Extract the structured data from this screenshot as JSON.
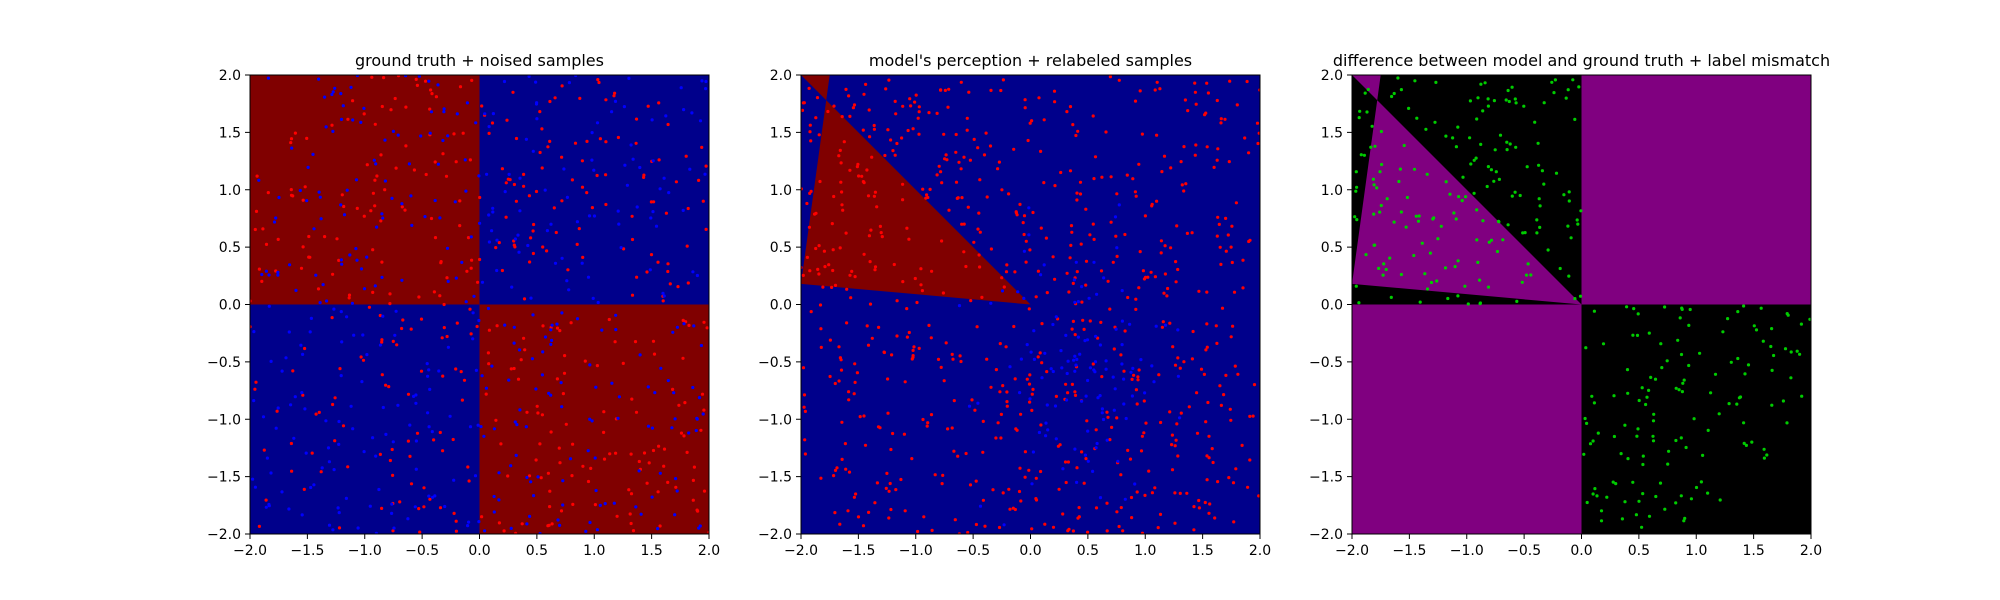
{
  "colors": {
    "red_region": "#800000",
    "blue_region": "#00008b",
    "magenta_region": "#800080",
    "black_region": "#000000",
    "red_point": "#ff0000",
    "blue_point": "#0000ff",
    "green_point": "#00cc00"
  },
  "chart_data": [
    {
      "type": "scatter",
      "title": "ground truth + noised samples",
      "xlim": [
        -2,
        2
      ],
      "ylim": [
        -2,
        2
      ],
      "xticks": [
        "−2.0",
        "−1.5",
        "−1.0",
        "−0.5",
        "0.0",
        "0.5",
        "1.0",
        "1.5",
        "2.0"
      ],
      "yticks": [
        "−2.0",
        "−1.5",
        "−1.0",
        "−0.5",
        "0.0",
        "0.5",
        "1.0",
        "1.5",
        "2.0"
      ],
      "background_regions": [
        {
          "quadrant": "x<0,y>0",
          "color": "red_region"
        },
        {
          "quadrant": "x>0,y>0",
          "color": "blue_region"
        },
        {
          "quadrant": "x<0,y<0",
          "color": "blue_region"
        },
        {
          "quadrant": "x>0,y<0",
          "color": "red_region"
        }
      ],
      "series": [
        {
          "color": "red_point",
          "distribution": "uniform",
          "n": 400
        },
        {
          "color": "blue_point",
          "distribution": "uniform",
          "n": 400
        }
      ],
      "grid": false
    },
    {
      "type": "scatter",
      "title": "model's perception + relabeled samples",
      "xlim": [
        -2,
        2
      ],
      "ylim": [
        -2,
        2
      ],
      "xticks": [
        "−2.0",
        "−1.5",
        "−1.0",
        "−0.5",
        "0.0",
        "0.5",
        "1.0",
        "1.5",
        "2.0"
      ],
      "yticks": [
        "−2.0",
        "−1.5",
        "−1.0",
        "−0.5",
        "0.0",
        "0.5",
        "1.0",
        "1.5",
        "2.0"
      ],
      "background": "blue_region",
      "background_regions": [
        {
          "polygon": [
            [
              -2,
              0.18
            ],
            [
              0,
              0
            ],
            [
              -2,
              2.0
            ],
            [
              -1.75,
              2.0
            ]
          ],
          "color": "red_region"
        }
      ],
      "series": [
        {
          "color": "red_point",
          "distribution": "uniform",
          "n": 700
        },
        {
          "color": "blue_point",
          "distribution": "cluster",
          "center": [
            0.4,
            -0.6
          ],
          "n": 120
        }
      ],
      "grid": false
    },
    {
      "type": "scatter",
      "title": "difference between model and ground truth + label mismatch",
      "xlim": [
        -2,
        2
      ],
      "ylim": [
        -2,
        2
      ],
      "xticks": [
        "−2.0",
        "−1.5",
        "−1.0",
        "−0.5",
        "0.0",
        "0.5",
        "1.0",
        "1.5",
        "2.0"
      ],
      "yticks": [
        "−2.0",
        "−1.5",
        "−1.0",
        "−0.5",
        "0.0",
        "0.5",
        "1.0",
        "1.5",
        "2.0"
      ],
      "background": "black_region",
      "background_regions": [
        {
          "quadrant": "x>0,y>0",
          "color": "magenta_region"
        },
        {
          "quadrant": "x<0,y<0",
          "color": "magenta_region"
        },
        {
          "polygon": [
            [
              -2,
              0.18
            ],
            [
              0,
              0
            ],
            [
              -2,
              2.0
            ],
            [
              -1.75,
              2.0
            ]
          ],
          "color": "magenta_region"
        }
      ],
      "series": [
        {
          "color": "green_point",
          "distribution": "mismatch",
          "n": 320
        }
      ],
      "grid": false
    }
  ]
}
